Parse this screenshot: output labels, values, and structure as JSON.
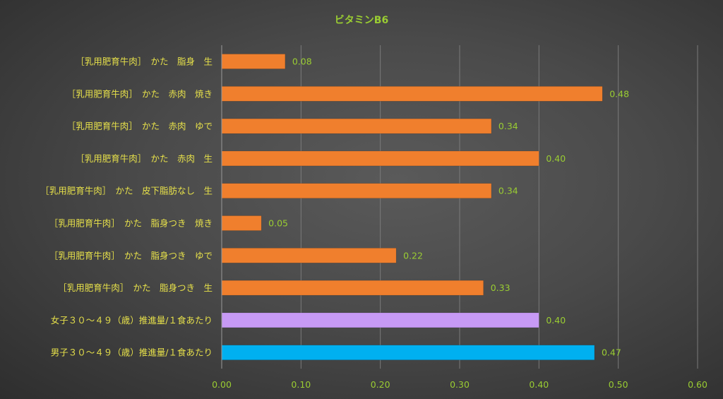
{
  "chart_data": {
    "type": "bar",
    "orientation": "horizontal",
    "title": "ビタミンB6",
    "categories": [
      "［乳用肥育牛肉］　かた　脂身　生",
      "［乳用肥育牛肉］　かた　赤肉　焼き",
      "［乳用肥育牛肉］　かた　赤肉　ゆで",
      "［乳用肥育牛肉］　かた　赤肉　生",
      "［乳用肥育牛肉］　かた　皮下脂肪なし　生",
      "［乳用肥育牛肉］　かた　脂身つき　焼き",
      "［乳用肥育牛肉］　かた　脂身つき　ゆで",
      "［乳用肥育牛肉］　かた　脂身つき　生",
      "女子３０～４９（歳）推進量/１食あたり",
      "男子３０～４９（歳）推進量/１食あたり"
    ],
    "values": [
      0.08,
      0.48,
      0.34,
      0.4,
      0.34,
      0.05,
      0.22,
      0.33,
      0.4,
      0.47
    ],
    "value_labels": [
      "0.08",
      "0.48",
      "0.34",
      "0.40",
      "0.34",
      "0.05",
      "0.22",
      "0.33",
      "0.40",
      "0.47"
    ],
    "bar_colors": [
      "#f07f2d",
      "#f07f2d",
      "#f07f2d",
      "#f07f2d",
      "#f07f2d",
      "#f07f2d",
      "#f07f2d",
      "#f07f2d",
      "#c79af5",
      "#00b0f0"
    ],
    "xlim": [
      0,
      0.6
    ],
    "x_ticks": [
      0,
      0.1,
      0.2,
      0.3,
      0.4,
      0.5,
      0.6
    ],
    "x_tick_labels": [
      "0.00",
      "0.10",
      "0.20",
      "0.30",
      "0.40",
      "0.50",
      "0.60"
    ],
    "grid": true,
    "legend": false,
    "colors": {
      "title": "#9acd32",
      "category_labels": "#e6e04a",
      "value_labels": "#9acd32",
      "tick_labels": "#9acd32"
    }
  }
}
